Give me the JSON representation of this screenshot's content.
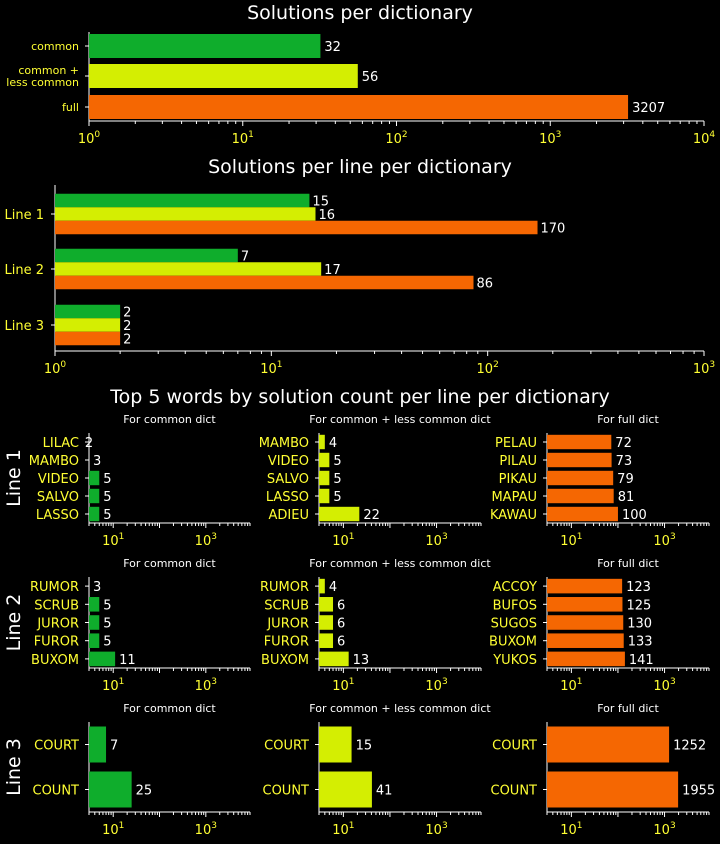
{
  "colors": {
    "common": "#0fad2c",
    "common_less": "#d4ee02",
    "full": "#f56702",
    "background": "#000000",
    "label_text": "#ffff33",
    "value_text": "#ffffff"
  },
  "chart_data": [
    {
      "type": "bar",
      "orientation": "horizontal",
      "title": "Solutions per dictionary",
      "xscale": "log",
      "xlim": [
        1,
        10000
      ],
      "x_ticks": [
        "10^0",
        "10^1",
        "10^2",
        "10^3",
        "10^4"
      ],
      "categories": [
        "common",
        "common +\nless common",
        "full"
      ],
      "values": [
        32,
        56,
        3207
      ]
    },
    {
      "type": "bar",
      "orientation": "horizontal",
      "title": "Solutions per line per dictionary",
      "xscale": "log",
      "xlim": [
        1,
        1000
      ],
      "x_ticks": [
        "10^0",
        "10^1",
        "10^2",
        "10^3"
      ],
      "categories": [
        "Line 1",
        "Line 2",
        "Line 3"
      ],
      "series": [
        {
          "values": [
            15,
            7,
            2
          ]
        },
        {
          "values": [
            16,
            17,
            2
          ]
        },
        {
          "values": [
            170,
            86,
            2
          ]
        }
      ]
    },
    {
      "type": "bar",
      "orientation": "horizontal",
      "title": "Top 5 words by solution count per line per dictionary",
      "xscale": "log",
      "x_ticks": [
        "10^1",
        "10^3"
      ],
      "rows": [
        {
          "label": "Line 1",
          "panels": [
            {
              "subtitle": "For common dict",
              "dict": "common",
              "words": [
                "LILAC",
                "MAMBO",
                "VIDEO",
                "SALVO",
                "LASSO"
              ],
              "values": [
                2,
                3,
                5,
                5,
                5
              ]
            },
            {
              "subtitle": "For common + less common dict",
              "dict": "common_less",
              "words": [
                "MAMBO",
                "VIDEO",
                "SALVO",
                "LASSO",
                "ADIEU"
              ],
              "values": [
                4,
                5,
                5,
                5,
                22
              ]
            },
            {
              "subtitle": "For full dict",
              "dict": "full",
              "words": [
                "PELAU",
                "PILAU",
                "PIKAU",
                "MAPAU",
                "KAWAU"
              ],
              "values": [
                72,
                73,
                79,
                81,
                100
              ]
            }
          ]
        },
        {
          "label": "Line 2",
          "panels": [
            {
              "subtitle": "For common dict",
              "dict": "common",
              "words": [
                "RUMOR",
                "SCRUB",
                "JUROR",
                "FUROR",
                "BUXOM"
              ],
              "values": [
                3,
                5,
                5,
                5,
                11
              ]
            },
            {
              "subtitle": "For common + less common dict",
              "dict": "common_less",
              "words": [
                "RUMOR",
                "SCRUB",
                "JUROR",
                "FUROR",
                "BUXOM"
              ],
              "values": [
                4,
                6,
                6,
                6,
                13
              ]
            },
            {
              "subtitle": "For full dict",
              "dict": "full",
              "words": [
                "ACCOY",
                "BUFOS",
                "SUGOS",
                "BUXOM",
                "YUKOS"
              ],
              "values": [
                123,
                125,
                130,
                133,
                141
              ]
            }
          ]
        },
        {
          "label": "Line 3",
          "panels": [
            {
              "subtitle": "For common dict",
              "dict": "common",
              "words": [
                "COURT",
                "COUNT"
              ],
              "values": [
                7,
                25
              ]
            },
            {
              "subtitle": "For common + less common dict",
              "dict": "common_less",
              "words": [
                "COURT",
                "COUNT"
              ],
              "values": [
                15,
                41
              ]
            },
            {
              "subtitle": "For full dict",
              "dict": "full",
              "words": [
                "COURT",
                "COUNT"
              ],
              "values": [
                1252,
                1955
              ]
            }
          ]
        }
      ]
    }
  ]
}
